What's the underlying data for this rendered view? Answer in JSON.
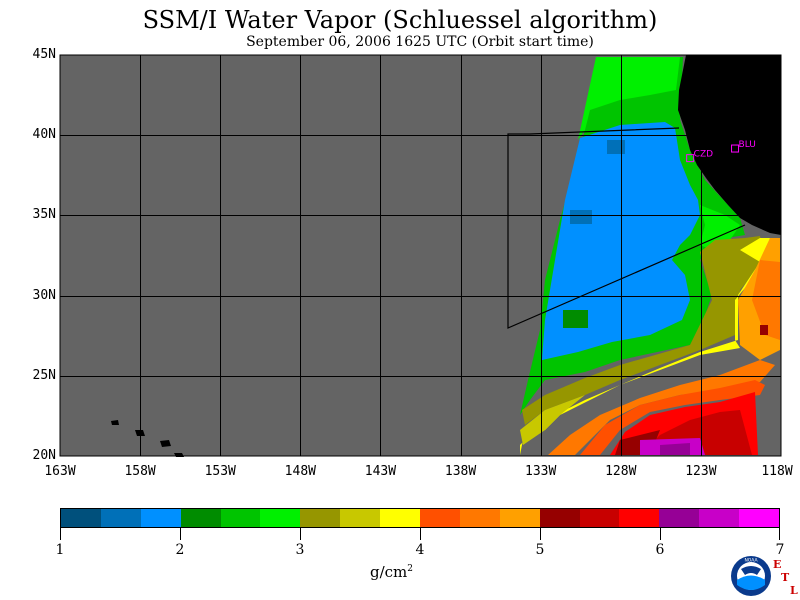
{
  "title": "SSM/I Water Vapor (Schluessel algorithm)",
  "subtitle": "September 06, 2006  1625 UTC  (Orbit start time)",
  "map": {
    "lon_range": [
      -163,
      -118
    ],
    "lat_range": [
      20,
      45
    ],
    "lat_labels": [
      "45N",
      "40N",
      "35N",
      "30N",
      "25N",
      "20N"
    ],
    "lon_labels": [
      "163W",
      "158W",
      "153W",
      "148W",
      "143W",
      "138W",
      "133W",
      "128W",
      "123W",
      "118W"
    ],
    "stations": [
      {
        "label": "CZD",
        "lon": -123.7,
        "lat": 38.6
      },
      {
        "label": "BLU",
        "lon": -120.9,
        "lat": 39.2
      }
    ],
    "station_color": "#ff00ff",
    "no_data_color": "#646464",
    "land_color": "#000000"
  },
  "colorbar": {
    "colors": [
      "#00507c",
      "#0070b8",
      "#0090ff",
      "#008c00",
      "#00c400",
      "#00f000",
      "#969600",
      "#c8c800",
      "#ffff00",
      "#ff5000",
      "#ff7800",
      "#ffa000",
      "#960000",
      "#c80000",
      "#ff0000",
      "#960096",
      "#c800c8",
      "#ff00ff"
    ],
    "tick_labels": [
      "1",
      "2",
      "3",
      "4",
      "5",
      "6",
      "7"
    ],
    "units_base": "g/cm",
    "units_exp": "2"
  },
  "logo": {
    "text": "NOAA",
    "etl": [
      "E",
      "T",
      "L"
    ]
  }
}
